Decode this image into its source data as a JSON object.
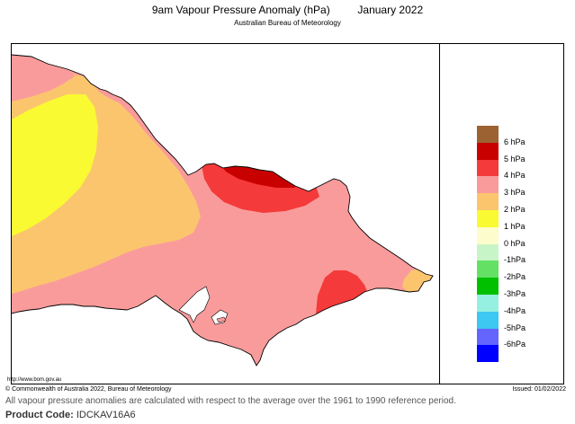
{
  "header": {
    "title": "9am Vapour Pressure Anomaly (hPa)",
    "month": "January 2022",
    "subtitle": "Australian Bureau of Meteorology"
  },
  "map": {
    "region": "Victoria",
    "source_url": "http://www.bom.gov.au",
    "colors": {
      "p6": "#9c6232",
      "p5": "#c80000",
      "p4": "#f43a3a",
      "p3": "#f99b9b",
      "p2": "#fbc56e",
      "p1": "#fafa32",
      "z": "#fdfccc",
      "water": "#ffffff"
    }
  },
  "legend": {
    "items": [
      {
        "color": "#9c6232",
        "label": "6 hPa"
      },
      {
        "color": "#c80000",
        "label": "5 hPa"
      },
      {
        "color": "#f43a3a",
        "label": "4 hPa"
      },
      {
        "color": "#f99b9b",
        "label": "3 hPa"
      },
      {
        "color": "#fbc56e",
        "label": "2 hPa"
      },
      {
        "color": "#fafa32",
        "label": "1 hPa"
      },
      {
        "color": "#fdfccc",
        "label": "0 hPa"
      },
      {
        "color": "#c8f5c8",
        "label": "-1hPa"
      },
      {
        "color": "#64e164",
        "label": "-2hPa"
      },
      {
        "color": "#00c000",
        "label": "-3hPa"
      },
      {
        "color": "#96f0e1",
        "label": "-4hPa"
      },
      {
        "color": "#3cc8f0",
        "label": "-5hPa"
      },
      {
        "color": "#6464ff",
        "label": "-6hPa"
      },
      {
        "color": "#0000ff",
        "label": ""
      }
    ]
  },
  "footer": {
    "copyright": "© Commonwealth of Australia 2022, Bureau of Meteorology",
    "issued": "Issued: 01/02/2022",
    "note": "All vapour pressure anomalies are calculated with respect to the average over the 1961 to 1990 reference period.",
    "product_label": "Product Code:",
    "product_code": "IDCKAV16A6"
  }
}
